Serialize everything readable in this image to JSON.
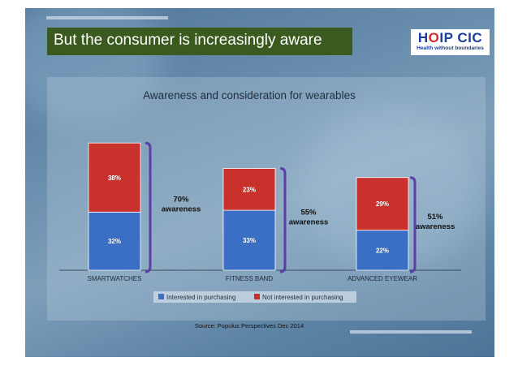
{
  "slide": {
    "title": "But the consumer is increasingly aware",
    "logo": {
      "name": "HOIP CIC",
      "name_pre": "H",
      "name_o": "O",
      "name_post": "IP CIC",
      "tagline": "Health without boundaries"
    },
    "source": "Source: Populus Perspectives Dec 2014"
  },
  "colors": {
    "interested": "#3a6fc4",
    "not_interested": "#c8312c",
    "bracket": "#5b3ea8",
    "title_bar": "#3b5a1f"
  },
  "chart_data": {
    "type": "bar",
    "stacked": true,
    "title": "Awareness and consideration for wearables",
    "categories": [
      "SMARTWATCHES",
      "FITNESS BAND",
      "ADVANCED EYEWEAR"
    ],
    "series": [
      {
        "name": "Interested in purchasing",
        "values": [
          32,
          33,
          22
        ],
        "labels": [
          "32%",
          "33%",
          "22%"
        ]
      },
      {
        "name": "Not interested in purchasing",
        "values": [
          38,
          23,
          29
        ],
        "labels": [
          "38%",
          "23%",
          "29%"
        ]
      }
    ],
    "awareness": [
      {
        "pct": "70%",
        "text": "awareness"
      },
      {
        "pct": "55%",
        "text": "awareness"
      },
      {
        "pct": "51%",
        "text": "awareness"
      }
    ],
    "ylim": [
      0,
      100
    ],
    "legend": "bottom",
    "xlabel": "",
    "ylabel": ""
  }
}
